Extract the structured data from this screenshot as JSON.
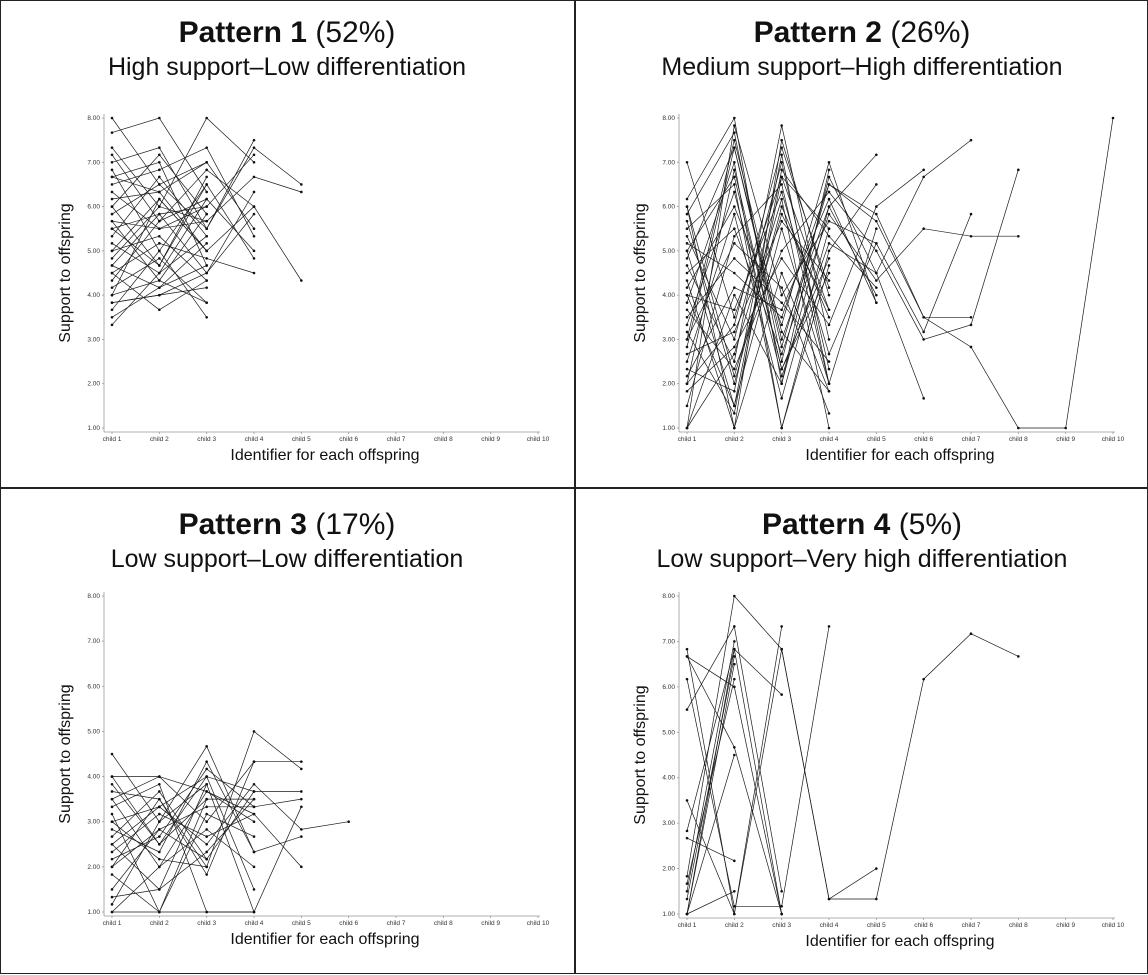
{
  "chart_data": [
    {
      "type": "line",
      "title_bold": "Pattern 1",
      "title_pct": "(52%)",
      "subtitle": "High support–Low differentiation",
      "xlabel": "Identifier for each offspring",
      "ylabel": "Support to offspring",
      "ylim": [
        1,
        8
      ],
      "categories": [
        "child 1",
        "child 2",
        "child 3",
        "child 4",
        "child 5",
        "child 6",
        "child 7",
        "child 8",
        "child 9",
        "child 10"
      ],
      "yticks": [
        "1.00",
        "2.00",
        "3.00",
        "4.00",
        "5.00",
        "6.00",
        "7.00",
        "8.00"
      ],
      "series": [
        [
          8.0,
          6.5,
          7.0,
          5.5
        ],
        [
          7.67,
          8.0,
          6.33
        ],
        [
          7.33,
          6.0,
          8.0,
          7.0
        ],
        [
          7.0,
          7.33,
          5.5,
          7.33,
          6.5
        ],
        [
          6.83,
          5.0,
          6.5
        ],
        [
          6.67,
          7.0,
          4.67
        ],
        [
          6.5,
          6.83,
          7.33,
          5.33
        ],
        [
          6.33,
          5.5,
          6.0
        ],
        [
          6.17,
          6.33,
          5.0,
          6.0,
          4.33
        ],
        [
          6.0,
          4.67,
          6.67
        ],
        [
          5.83,
          6.5,
          5.5,
          7.5
        ],
        [
          5.67,
          4.33,
          5.83
        ],
        [
          5.5,
          5.83,
          4.5,
          6.33
        ],
        [
          5.33,
          6.67,
          5.33
        ],
        [
          5.17,
          4.5,
          6.17,
          5.0
        ],
        [
          5.0,
          5.33,
          4.33
        ],
        [
          4.83,
          6.0,
          5.67,
          6.67,
          6.33
        ],
        [
          4.67,
          4.17,
          5.17
        ],
        [
          4.5,
          5.17,
          4.83,
          4.5
        ],
        [
          4.33,
          5.67,
          6.17
        ],
        [
          4.17,
          4.83,
          3.83
        ],
        [
          4.0,
          6.17,
          5.0
        ],
        [
          3.83,
          4.0,
          4.5,
          5.83
        ],
        [
          3.67,
          5.0,
          3.5
        ],
        [
          3.5,
          4.17,
          4.67
        ],
        [
          3.33,
          4.5,
          5.33
        ],
        [
          7.17,
          5.67,
          6.83,
          6.0
        ],
        [
          6.0,
          7.17,
          5.83
        ],
        [
          5.5,
          4.67,
          6.5,
          4.83
        ],
        [
          5.0,
          6.17,
          5.0
        ],
        [
          4.5,
          3.67,
          4.33
        ],
        [
          4.0,
          4.33,
          3.83
        ],
        [
          6.67,
          6.33,
          7.0
        ],
        [
          5.67,
          5.5,
          5.67
        ],
        [
          4.67,
          5.83,
          6.0,
          7.17
        ],
        [
          3.83,
          4.0,
          4.17
        ]
      ]
    },
    {
      "type": "line",
      "title_bold": "Pattern 2",
      "title_pct": "(26%)",
      "subtitle": "Medium support–High differentiation",
      "xlabel": "Identifier for each offspring",
      "ylabel": "Support to offspring",
      "ylim": [
        1,
        8
      ],
      "categories": [
        "child 1",
        "child 2",
        "child 3",
        "child 4",
        "child 5",
        "child 6",
        "child 7",
        "child 8",
        "child 9",
        "child 10"
      ],
      "yticks": [
        "1.00",
        "2.00",
        "3.00",
        "4.00",
        "5.00",
        "6.00",
        "7.00",
        "8.00"
      ],
      "series": [
        [
          7.0,
          3.5,
          6.67,
          5.5
        ],
        [
          6.17,
          8.0,
          2.0,
          6.0,
          7.17
        ],
        [
          6.0,
          1.0,
          7.5,
          4.0
        ],
        [
          5.83,
          7.67,
          2.5,
          6.67,
          4.5,
          6.67,
          7.5
        ],
        [
          5.67,
          2.0,
          6.0,
          3.5
        ],
        [
          5.5,
          6.5,
          1.0,
          5.0,
          6.5
        ],
        [
          5.33,
          3.0,
          7.0,
          2.33
        ],
        [
          5.17,
          4.5,
          3.5,
          6.5,
          5.83,
          3.5,
          3.5
        ],
        [
          5.0,
          1.5,
          5.5,
          2.0
        ],
        [
          4.83,
          7.33,
          3.0,
          6.0,
          4.0
        ],
        [
          4.67,
          2.5,
          7.83,
          3.0
        ],
        [
          4.5,
          5.5,
          2.67,
          5.83,
          4.33,
          5.5,
          5.33,
          5.33
        ],
        [
          4.33,
          1.0,
          4.5,
          1.83
        ],
        [
          4.17,
          6.0,
          3.33,
          7.0,
          3.83
        ],
        [
          4.0,
          3.67,
          6.33,
          2.67,
          5.17,
          3.17,
          5.83
        ],
        [
          3.83,
          7.0,
          1.0,
          4.67
        ],
        [
          3.67,
          2.33,
          5.0,
          6.33,
          5.0,
          3.0,
          3.33,
          6.83
        ],
        [
          3.5,
          4.83,
          3.83,
          2.5
        ],
        [
          3.33,
          6.33,
          2.17,
          5.17,
          4.5,
          1.67
        ],
        [
          3.17,
          1.33,
          6.67,
          3.67
        ],
        [
          3.0,
          5.17,
          4.17,
          1.33
        ],
        [
          2.83,
          7.33,
          2.83,
          6.5,
          5.67,
          3.5,
          2.83,
          1.0,
          1.0,
          8.0
        ],
        [
          2.67,
          3.17,
          5.67,
          4.33
        ],
        [
          2.5,
          5.83,
          1.67,
          5.5
        ],
        [
          2.33,
          1.83,
          7.17,
          2.0,
          5.5
        ],
        [
          2.17,
          4.17,
          3.67,
          6.17,
          3.83
        ],
        [
          2.0,
          6.83,
          2.33,
          4.83
        ],
        [
          1.83,
          2.83,
          4.83,
          3.33,
          6.0,
          6.83
        ],
        [
          1.5,
          5.33,
          6.5,
          2.0
        ],
        [
          1.0,
          7.83,
          4.0,
          5.67,
          5.17
        ],
        [
          1.0,
          2.67,
          6.17,
          1.0
        ],
        [
          1.0,
          4.0,
          2.0,
          6.83
        ],
        [
          6.0,
          2.17,
          5.83,
          3.67
        ],
        [
          5.0,
          6.67,
          2.33,
          4.5
        ],
        [
          4.0,
          1.5,
          6.83,
          5.33,
          4.17
        ],
        [
          3.0,
          7.5,
          3.17,
          1.83
        ],
        [
          2.0,
          3.33,
          7.33,
          4.17
        ]
      ]
    },
    {
      "type": "line",
      "title_bold": "Pattern 3",
      "title_pct": "(17%)",
      "subtitle": "Low support–Low differentiation",
      "xlabel": "Identifier for each offspring",
      "ylabel": "Support to offspring",
      "ylim": [
        1,
        8
      ],
      "categories": [
        "child 1",
        "child 2",
        "child 3",
        "child 4",
        "child 5",
        "child 6",
        "child 7",
        "child 8",
        "child 9",
        "child 10"
      ],
      "yticks": [
        "1.00",
        "2.00",
        "3.00",
        "4.00",
        "5.00",
        "6.00",
        "7.00",
        "8.00"
      ],
      "series": [
        [
          4.5,
          3.0,
          4.67,
          2.33,
          2.67
        ],
        [
          4.0,
          4.0,
          3.0,
          4.33,
          4.33
        ],
        [
          3.83,
          2.5,
          4.0,
          1.5
        ],
        [
          3.67,
          3.5,
          2.0,
          5.0,
          4.17
        ],
        [
          3.5,
          2.0,
          3.67,
          3.0
        ],
        [
          3.33,
          3.83,
          1.0,
          1.0,
          3.33
        ],
        [
          3.17,
          1.0,
          3.5,
          3.5
        ],
        [
          3.0,
          3.33,
          2.5,
          3.83,
          2.83,
          3.0
        ],
        [
          2.83,
          2.33,
          4.33,
          2.33
        ],
        [
          2.67,
          3.67,
          2.17,
          3.67,
          3.67
        ],
        [
          2.5,
          1.5,
          3.83,
          1.0
        ],
        [
          2.33,
          3.17,
          2.67,
          3.17,
          2.0
        ],
        [
          2.17,
          2.67,
          4.17,
          3.33
        ],
        [
          2.0,
          3.5,
          1.83,
          4.33
        ],
        [
          1.83,
          1.0,
          3.17,
          2.67
        ],
        [
          1.5,
          2.83,
          3.33,
          3.33,
          3.5
        ],
        [
          1.33,
          1.5,
          2.33,
          3.5
        ],
        [
          1.17,
          3.0,
          3.83
        ],
        [
          1.0,
          2.0,
          2.83,
          2.0
        ],
        [
          4.0,
          2.5,
          3.5
        ],
        [
          3.5,
          4.0,
          3.67,
          3.17
        ],
        [
          3.0,
          2.17,
          2.0
        ],
        [
          2.5,
          3.33,
          4.0,
          3.67
        ],
        [
          2.0,
          2.83,
          2.17
        ],
        [
          1.0,
          1.0,
          1.0,
          1.0
        ]
      ]
    },
    {
      "type": "line",
      "title_bold": "Pattern 4",
      "title_pct": "(5%)",
      "subtitle": "Low support–Very high differentiation",
      "xlabel": "Identifier for each offspring",
      "ylabel": "Support to offspring",
      "ylim": [
        1,
        8
      ],
      "categories": [
        "child 1",
        "child 2",
        "child 3",
        "child 4",
        "child 5",
        "child 6",
        "child 7",
        "child 8",
        "child 9",
        "child 10"
      ],
      "yticks": [
        "1.00",
        "2.00",
        "3.00",
        "4.00",
        "5.00",
        "6.00",
        "7.00",
        "8.00"
      ],
      "series": [
        [
          6.83,
          1.0,
          7.33
        ],
        [
          6.67,
          4.67,
          1.0
        ],
        [
          6.17,
          1.17,
          1.17,
          7.33
        ],
        [
          5.5,
          7.33,
          1.5
        ],
        [
          3.5,
          1.0,
          6.83,
          1.33,
          1.33,
          6.17,
          7.17,
          6.67
        ],
        [
          2.83,
          6.83,
          5.83
        ],
        [
          2.67,
          2.17
        ],
        [
          1.83,
          8.0,
          6.83,
          1.33,
          2.0
        ],
        [
          1.67,
          6.17
        ],
        [
          1.5,
          7.0
        ],
        [
          1.0,
          6.83,
          1.0
        ],
        [
          1.0,
          6.5
        ],
        [
          1.0,
          4.5
        ],
        [
          1.0,
          1.5
        ],
        [
          1.33,
          6.67
        ],
        [
          6.67,
          6.0,
          1.0
        ]
      ]
    }
  ]
}
